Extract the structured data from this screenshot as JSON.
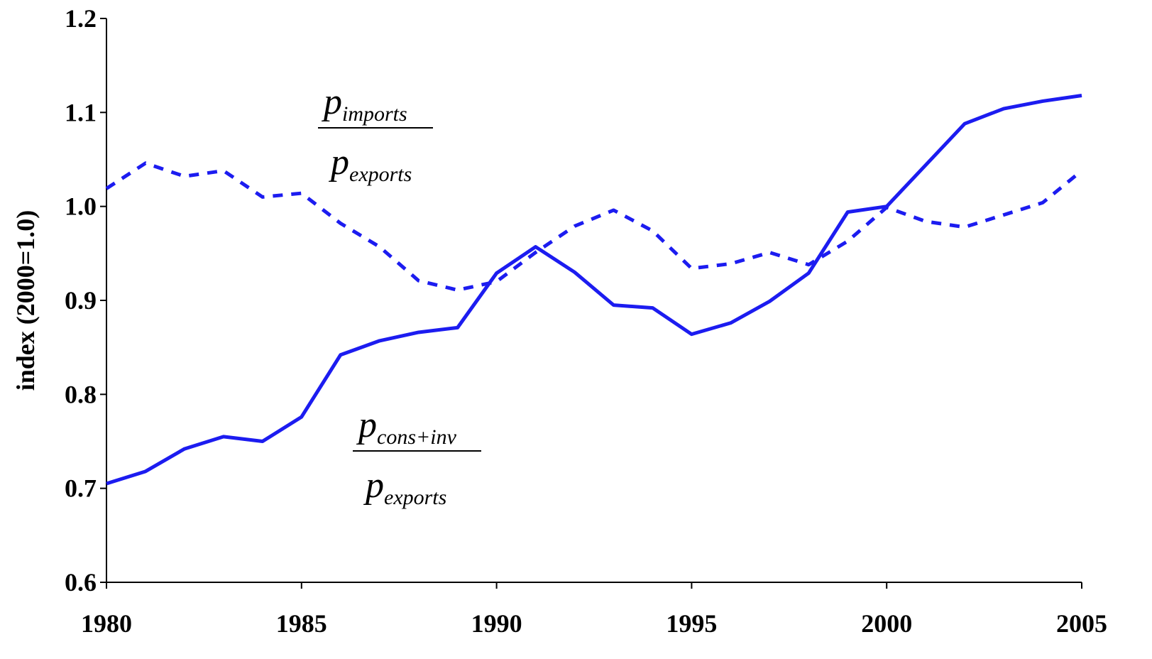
{
  "chart_data": {
    "type": "line",
    "y_label": "index (2000=1.0)",
    "x": [
      1980,
      1981,
      1982,
      1983,
      1984,
      1985,
      1986,
      1987,
      1988,
      1989,
      1990,
      1991,
      1992,
      1993,
      1994,
      1995,
      1996,
      1997,
      1998,
      1999,
      2000,
      2001,
      2002,
      2003,
      2004,
      2005
    ],
    "series": [
      {
        "color": "#1c1cf0",
        "dash": "solid",
        "label": {
          "numerator": "p",
          "numerator_sub": "cons+inv",
          "denominator": "p",
          "denominator_sub": "exports"
        },
        "values": [
          0.705,
          0.718,
          0.742,
          0.755,
          0.75,
          0.776,
          0.842,
          0.857,
          0.866,
          0.871,
          0.929,
          0.957,
          0.93,
          0.895,
          0.892,
          0.864,
          0.876,
          0.899,
          0.929,
          0.994,
          1.0,
          1.044,
          1.088,
          1.104,
          1.112,
          1.118
        ]
      },
      {
        "color": "#1c1cf0",
        "dash": "dashed",
        "label": {
          "numerator": "p",
          "numerator_sub": "imports",
          "denominator": "p",
          "denominator_sub": "exports"
        },
        "values": [
          1.019,
          1.046,
          1.032,
          1.038,
          1.01,
          1.014,
          0.982,
          0.957,
          0.921,
          0.911,
          0.92,
          0.951,
          0.979,
          0.996,
          0.974,
          0.934,
          0.939,
          0.951,
          0.938,
          0.963,
          0.999,
          0.984,
          0.978,
          0.991,
          1.004,
          1.038
        ]
      }
    ],
    "xlim": [
      1980,
      2005
    ],
    "xticks": [
      1980,
      1985,
      1990,
      1995,
      2000,
      2005
    ],
    "ylim": [
      0.6,
      1.2
    ],
    "yticks": [
      0.6,
      0.7,
      0.8,
      0.9,
      {
        "value": 1.0,
        "label": "1.0"
      },
      1.1,
      1.2
    ],
    "grid": false
  }
}
